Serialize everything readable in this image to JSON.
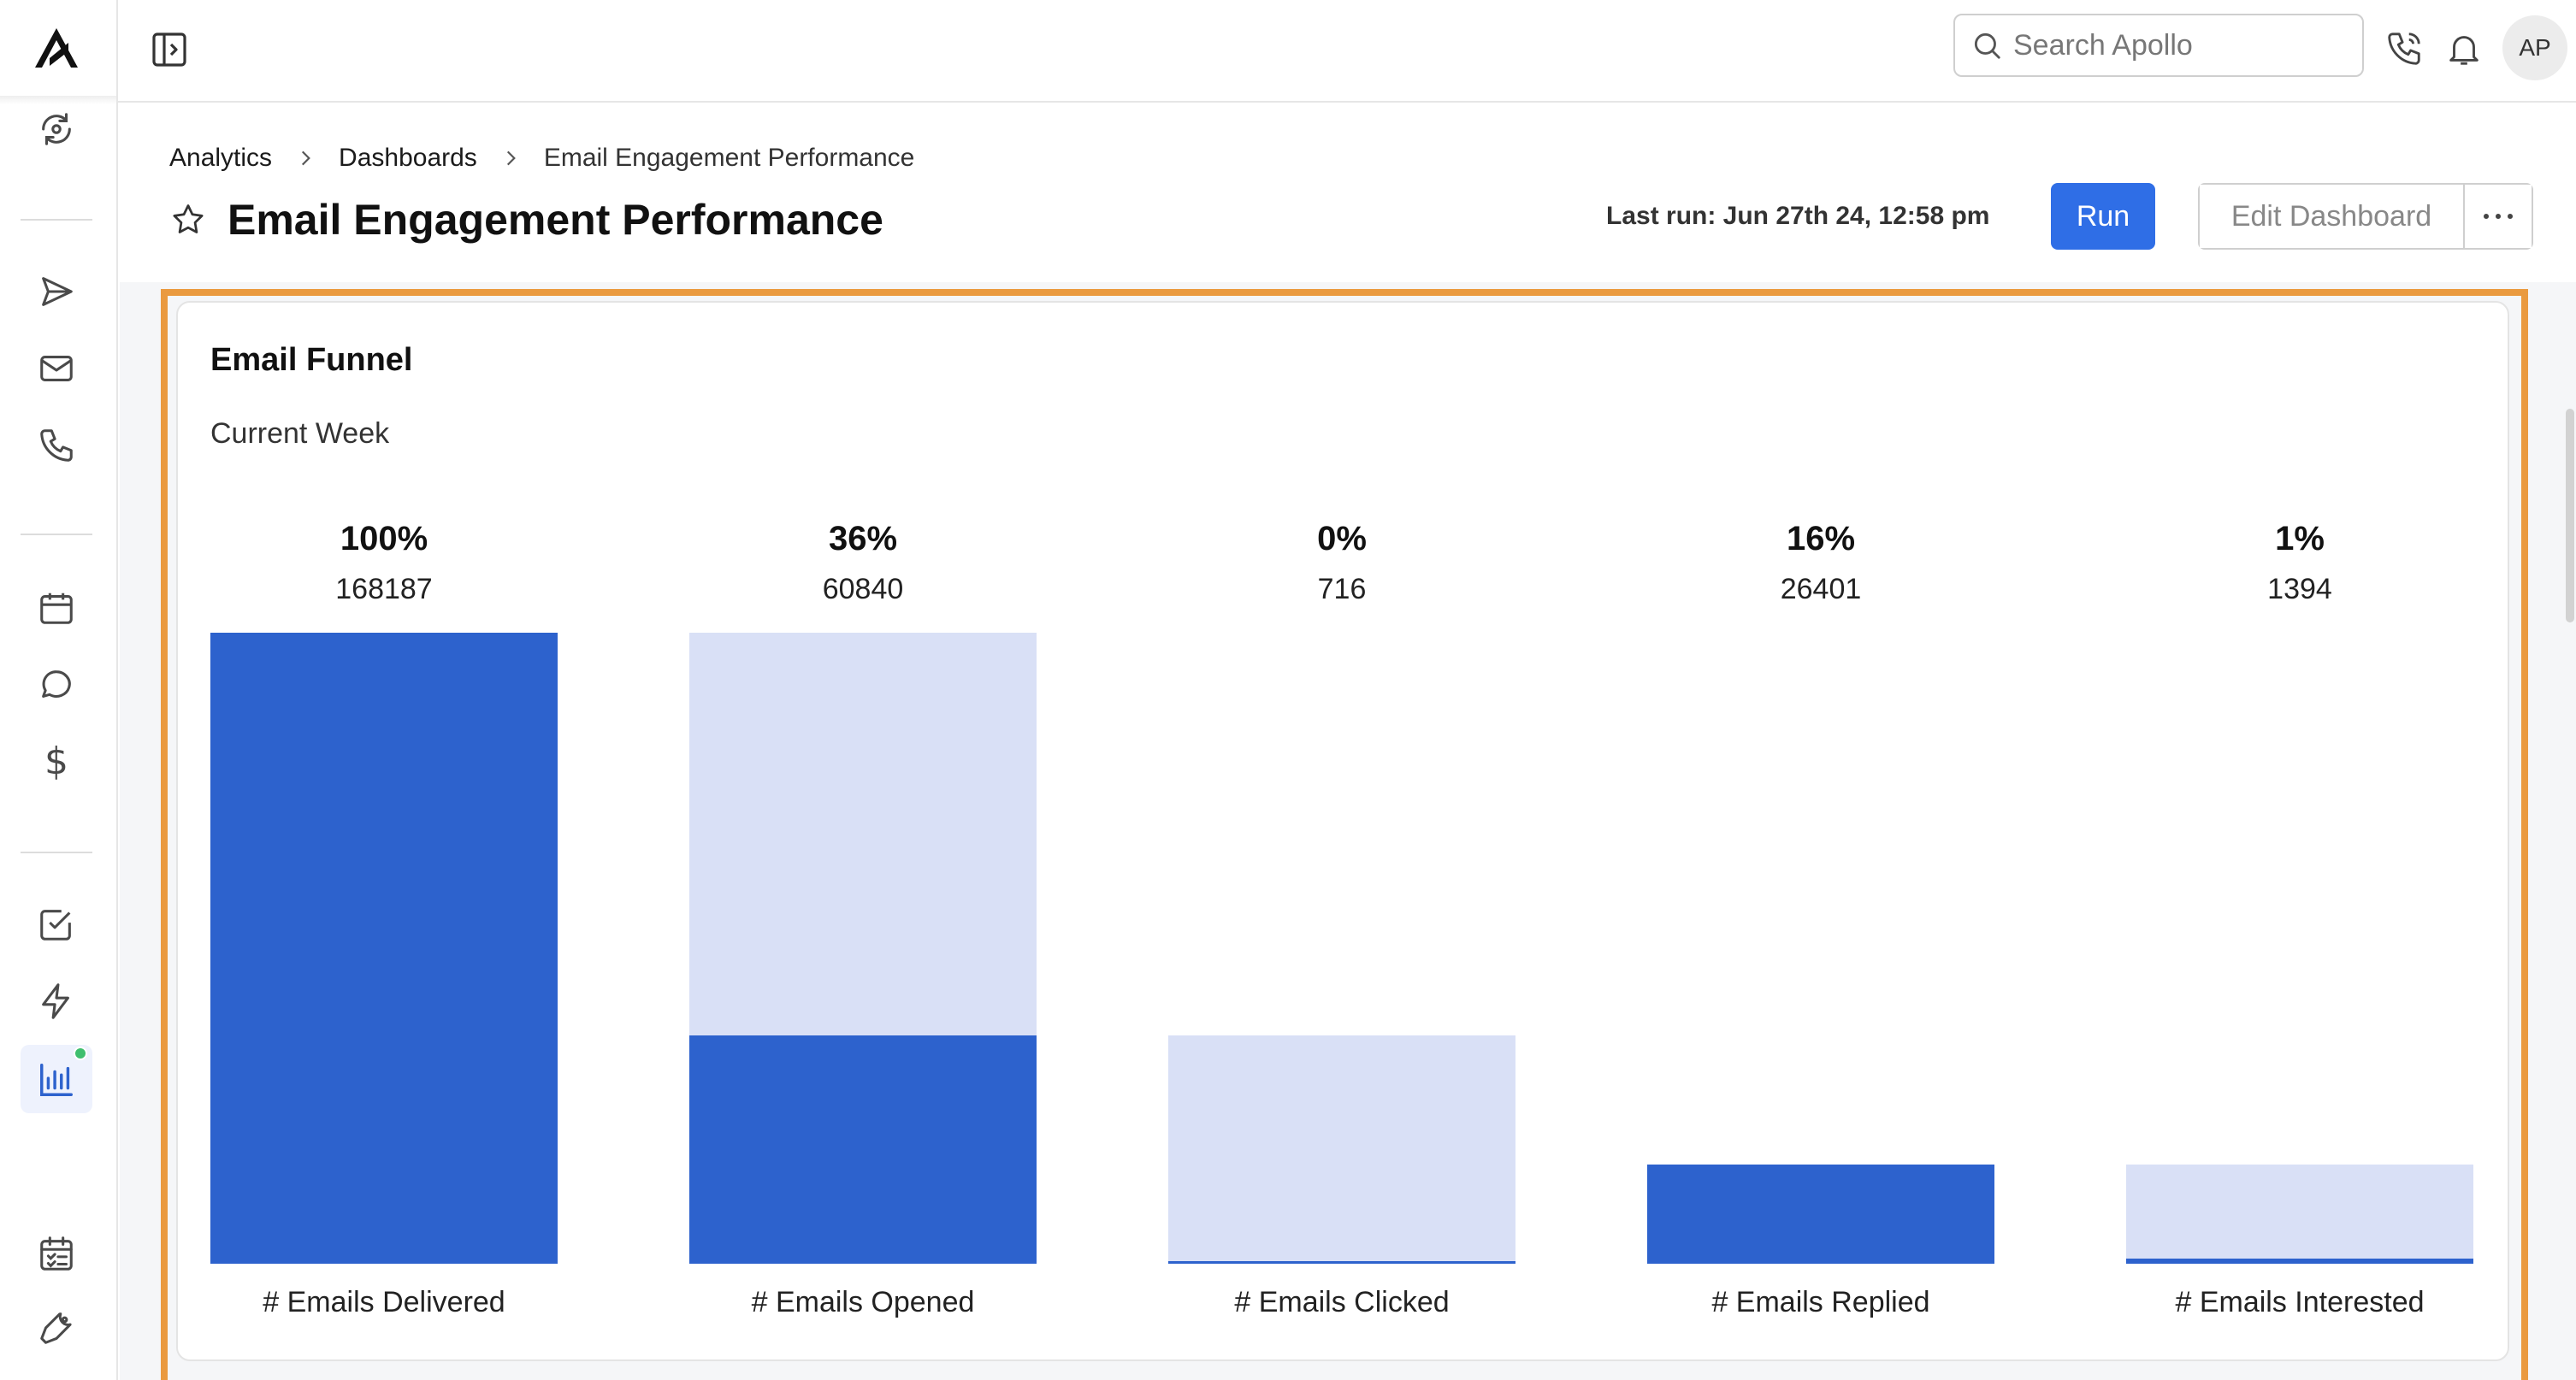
{
  "app": {
    "search": {
      "placeholder": "Search Apollo"
    },
    "avatar_initials": "AP",
    "accent_color": "#2f6ee6",
    "highlight_color": "#ea9a3f"
  },
  "sidebar": {
    "items": [
      {
        "icon": "refresh-icon"
      },
      {
        "icon": "send-icon"
      },
      {
        "icon": "mail-icon"
      },
      {
        "icon": "phone-icon"
      },
      {
        "icon": "calendar-icon"
      },
      {
        "icon": "chat-icon"
      },
      {
        "icon": "dollar-icon"
      },
      {
        "icon": "task-check-icon"
      },
      {
        "icon": "lightning-icon"
      },
      {
        "icon": "analytics-chart-icon",
        "active": true
      },
      {
        "icon": "checklist-icon"
      },
      {
        "icon": "settings-wrench-icon"
      }
    ]
  },
  "header": {
    "breadcrumb": [
      "Analytics",
      "Dashboards",
      "Email Engagement Performance"
    ],
    "title": "Email Engagement Performance",
    "last_run": "Last run: Jun 27th 24, 12:58 pm",
    "run_label": "Run",
    "edit_label": "Edit Dashboard"
  },
  "card": {
    "title": "Email Funnel",
    "subtitle": "Current Week"
  },
  "chart_data": {
    "type": "bar",
    "subtype": "funnel",
    "title": "Email Funnel",
    "subtitle": "Current Week",
    "categories": [
      "# Emails Delivered",
      "# Emails Opened",
      "# Emails Clicked",
      "# Emails Replied",
      "# Emails Interested"
    ],
    "values": [
      168187,
      60840,
      716,
      26401,
      1394
    ],
    "percent_labels": [
      "100%",
      "36%",
      "0%",
      "16%",
      "1%"
    ],
    "count_labels": [
      "168187",
      "60840",
      "716",
      "26401",
      "1394"
    ],
    "colors": {
      "current": "#2d62cd",
      "previous_stage": "#d9e0f6"
    }
  }
}
